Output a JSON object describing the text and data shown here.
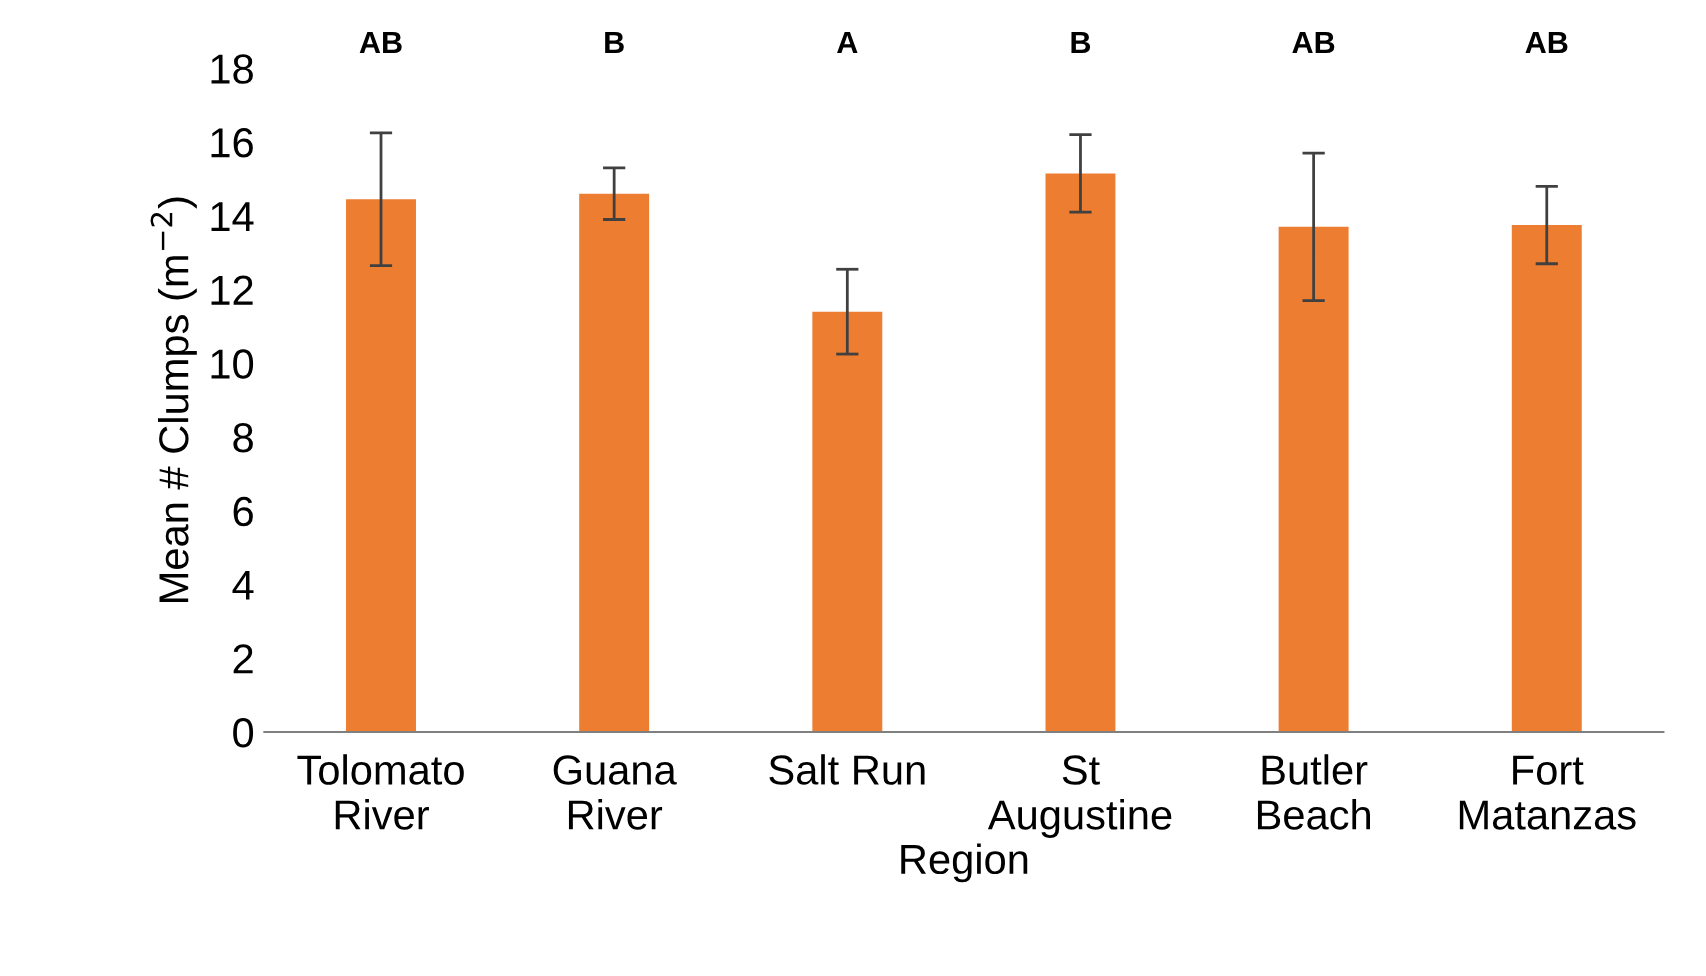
{
  "chart_data": {
    "type": "bar",
    "xlabel": "Region",
    "ylabel": "Mean # Clumps (m$^{−2}$)",
    "categories": [
      "Tolomato\nRiver",
      "Guana\nRiver",
      "Salt Run",
      "St\nAugustine",
      "Butler\nBeach",
      "Fort\nMatanzas"
    ],
    "values": [
      14.45,
      14.6,
      11.4,
      15.15,
      13.7,
      13.75
    ],
    "errors": [
      1.8,
      0.7,
      1.15,
      1.05,
      2.0,
      1.05
    ],
    "color": "#ed7d31",
    "ylim": [
      0,
      18
    ],
    "yticks": [
      0,
      2,
      4,
      6,
      8,
      10,
      12,
      14,
      16,
      18
    ],
    "grid": false,
    "annotations": [
      "AB",
      "B",
      "A",
      "B",
      "AB",
      "AB"
    ]
  }
}
